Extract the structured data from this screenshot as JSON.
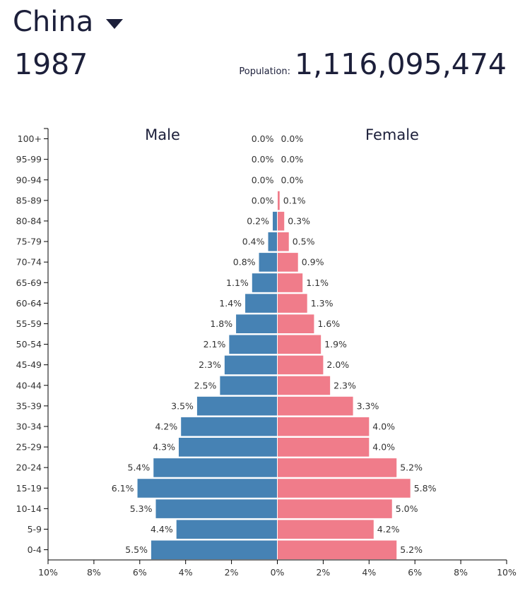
{
  "header": {
    "country": "China",
    "year": "1987",
    "population_label": "Population:",
    "population_value": "1,116,095,474"
  },
  "colors": {
    "male": "#4682b4",
    "female": "#f07c8a",
    "text": "#1c1f3a"
  },
  "chart_data": {
    "type": "bar",
    "orientation": "horizontal",
    "series": [
      {
        "name": "Male",
        "values": [
          5.5,
          4.4,
          5.3,
          6.1,
          5.4,
          4.3,
          4.2,
          3.5,
          2.5,
          2.3,
          2.1,
          1.8,
          1.4,
          1.1,
          0.8,
          0.4,
          0.2,
          0.0,
          0.0,
          0.0,
          0.0
        ]
      },
      {
        "name": "Female",
        "values": [
          5.2,
          4.2,
          5.0,
          5.8,
          5.2,
          4.0,
          4.0,
          3.3,
          2.3,
          2.0,
          1.9,
          1.6,
          1.3,
          1.1,
          0.9,
          0.5,
          0.3,
          0.1,
          0.0,
          0.0,
          0.0
        ]
      }
    ],
    "categories": [
      "0-4",
      "5-9",
      "10-14",
      "15-19",
      "20-24",
      "25-29",
      "30-34",
      "35-39",
      "40-44",
      "45-49",
      "50-54",
      "55-59",
      "60-64",
      "65-69",
      "70-74",
      "75-79",
      "80-84",
      "85-89",
      "90-94",
      "95-99",
      "100+"
    ],
    "male_labels": [
      "5.5%",
      "4.4%",
      "5.3%",
      "6.1%",
      "5.4%",
      "4.3%",
      "4.2%",
      "3.5%",
      "2.5%",
      "2.3%",
      "2.1%",
      "1.8%",
      "1.4%",
      "1.1%",
      "0.8%",
      "0.4%",
      "0.2%",
      "0.0%",
      "0.0%",
      "0.0%",
      "0.0%"
    ],
    "female_labels": [
      "5.2%",
      "4.2%",
      "5.0%",
      "5.8%",
      "5.2%",
      "4.0%",
      "4.0%",
      "3.3%",
      "2.3%",
      "2.0%",
      "1.9%",
      "1.6%",
      "1.3%",
      "1.1%",
      "0.9%",
      "0.5%",
      "0.3%",
      "0.1%",
      "0.0%",
      "0.0%",
      "0.0%"
    ],
    "x_ticks": [
      "10%",
      "8%",
      "6%",
      "4%",
      "2%",
      "0%",
      "2%",
      "4%",
      "6%",
      "8%",
      "10%"
    ],
    "x_tick_values": [
      -10,
      -8,
      -6,
      -4,
      -2,
      0,
      2,
      4,
      6,
      8,
      10
    ],
    "xlim": [
      -10,
      10
    ],
    "male_label": "Male",
    "female_label": "Female",
    "title": "",
    "xlabel": "",
    "ylabel": ""
  }
}
